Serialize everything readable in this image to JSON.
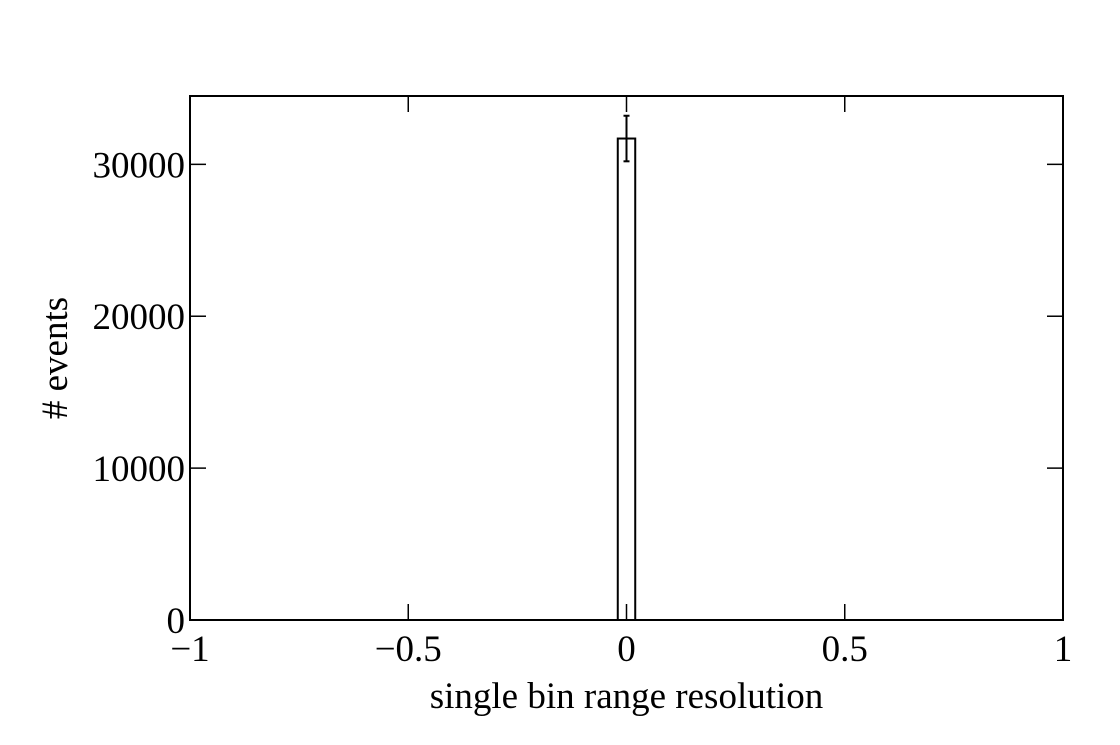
{
  "chart_data": {
    "type": "bar",
    "title": "",
    "xlabel": "single bin range resolution",
    "ylabel": "# events",
    "xlim": [
      -1,
      1
    ],
    "ylim": [
      0,
      34500
    ],
    "x_ticks": [
      {
        "value": -1,
        "label": "−1"
      },
      {
        "value": -0.5,
        "label": "−0.5"
      },
      {
        "value": 0,
        "label": "0"
      },
      {
        "value": 0.5,
        "label": "0.5"
      },
      {
        "value": 1,
        "label": "1"
      }
    ],
    "y_ticks": [
      {
        "value": 0,
        "label": "0"
      },
      {
        "value": 10000,
        "label": "10000"
      },
      {
        "value": 20000,
        "label": "20000"
      },
      {
        "value": 30000,
        "label": "30000"
      }
    ],
    "bars": [
      {
        "x_start": -0.02,
        "x_end": 0.02,
        "value": 31700,
        "error": 1500
      }
    ],
    "grid": false,
    "legend": "none",
    "colors": {
      "bar_fill": "#ffffff",
      "bar_stroke": "#000000",
      "axes": "#000000"
    }
  }
}
